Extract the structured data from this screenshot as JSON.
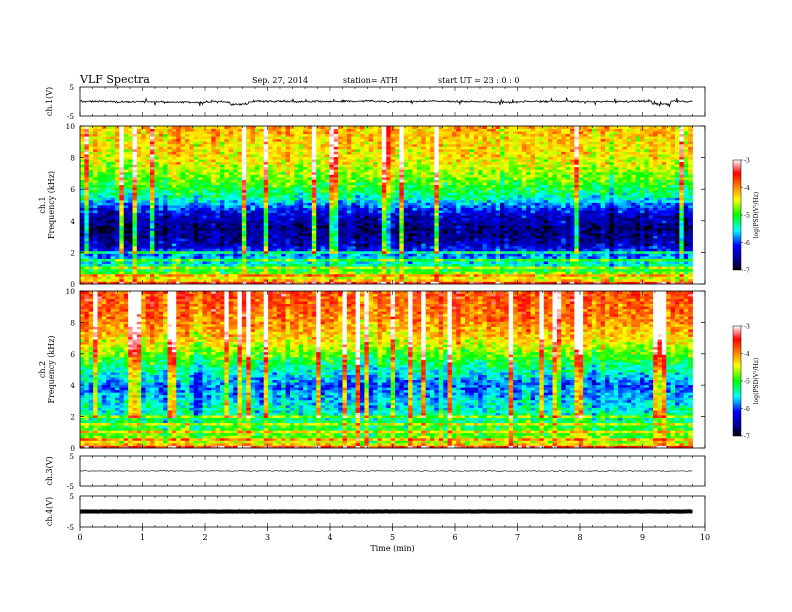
{
  "header": {
    "title": "VLF  Spectra",
    "date": "Sep. 27, 2014",
    "station": "station= ATH",
    "start": "start  UT  =   23 : 0  : 0"
  },
  "chart_data": [
    {
      "id": "ch1-voltage",
      "type": "line",
      "ylabel": "ch.1(V)",
      "ylim": [
        -5,
        5
      ],
      "yticks": [
        "5",
        "-5"
      ],
      "baseline": 0,
      "noise_amplitude": 0.8,
      "color": "#000000"
    },
    {
      "id": "ch1-spectrogram",
      "type": "heatmap",
      "channel_label": "ch.1",
      "ylabel": "Frequency  (kHz)",
      "ylim": [
        0,
        10
      ],
      "yticks": [
        "0",
        "2",
        "4",
        "6",
        "8",
        "10"
      ],
      "xlim": [
        0,
        10
      ],
      "data_end_min": 9.8,
      "profile_logpsd": [
        {
          "f": 0.0,
          "v": -4.0
        },
        {
          "f": 0.5,
          "v": -4.6
        },
        {
          "f": 1.0,
          "v": -5.2
        },
        {
          "f": 1.5,
          "v": -5.6
        },
        {
          "f": 2.0,
          "v": -5.9
        },
        {
          "f": 2.5,
          "v": -6.4
        },
        {
          "f": 3.5,
          "v": -6.7
        },
        {
          "f": 4.5,
          "v": -6.3
        },
        {
          "f": 5.5,
          "v": -5.4
        },
        {
          "f": 6.5,
          "v": -4.9
        },
        {
          "f": 8.0,
          "v": -4.4
        },
        {
          "f": 10.0,
          "v": -4.2
        }
      ]
    },
    {
      "id": "ch2-spectrogram",
      "type": "heatmap",
      "channel_label": "ch.2",
      "ylabel": "Frequency  (kHz)",
      "ylim": [
        0,
        10
      ],
      "yticks": [
        "0",
        "2",
        "4",
        "6",
        "8",
        "10"
      ],
      "xlim": [
        0,
        10
      ],
      "data_end_min": 9.8,
      "profile_logpsd": [
        {
          "f": 0.0,
          "v": -4.0
        },
        {
          "f": 0.5,
          "v": -4.7
        },
        {
          "f": 1.0,
          "v": -5.0
        },
        {
          "f": 2.0,
          "v": -5.3
        },
        {
          "f": 3.0,
          "v": -5.6
        },
        {
          "f": 4.0,
          "v": -5.9
        },
        {
          "f": 5.0,
          "v": -5.4
        },
        {
          "f": 6.0,
          "v": -4.8
        },
        {
          "f": 7.0,
          "v": -4.3
        },
        {
          "f": 8.5,
          "v": -3.9
        },
        {
          "f": 10.0,
          "v": -3.7
        }
      ]
    },
    {
      "id": "ch3-voltage",
      "type": "line",
      "ylabel": "ch.3(V)",
      "ylim": [
        -5,
        5
      ],
      "yticks": [
        "5",
        "-5"
      ],
      "baseline": 0,
      "noise_amplitude": 0.15,
      "color": "#000000"
    },
    {
      "id": "ch4-voltage",
      "type": "line",
      "ylabel": "ch.4(V)",
      "ylim": [
        -5,
        5
      ],
      "yticks": [
        "5",
        "-5"
      ],
      "baseline": 0,
      "noise_amplitude": 0.05,
      "color": "#000000"
    }
  ],
  "xaxis": {
    "label": "Time  (min)",
    "ticks": [
      "0",
      "1",
      "2",
      "3",
      "4",
      "5",
      "6",
      "7",
      "8",
      "9",
      "10"
    ],
    "xlim": [
      0,
      10
    ]
  },
  "colorbars": [
    {
      "label": "log(PSD(V²/Hz)",
      "ticks": [
        "-3",
        "-4",
        "-5",
        "-6",
        "-7"
      ],
      "range": [
        -7,
        -3
      ]
    },
    {
      "label": "log(PSD(V²/Hz)",
      "ticks": [
        "-3",
        "-4",
        "-5",
        "-6",
        "-7"
      ],
      "range": [
        -7,
        -3
      ]
    }
  ]
}
